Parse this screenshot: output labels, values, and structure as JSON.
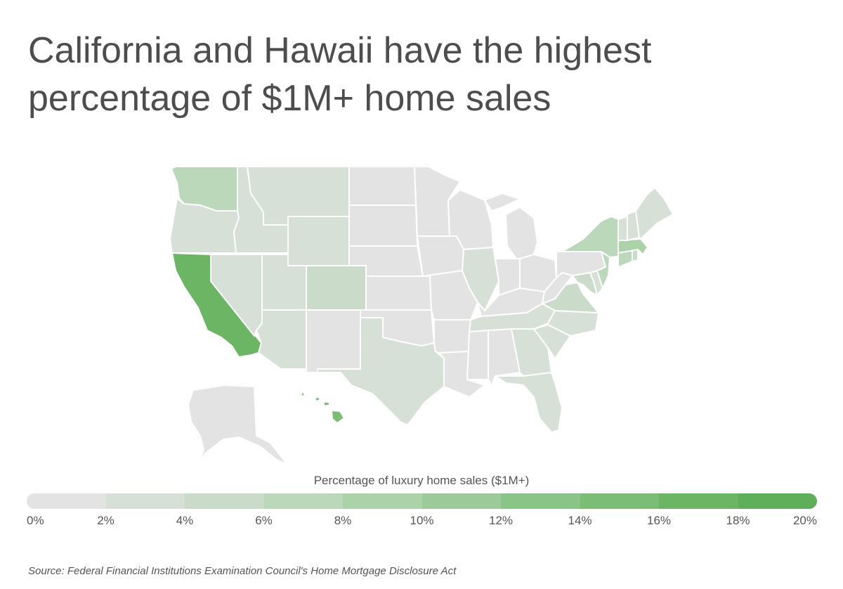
{
  "title": {
    "line1": "California and Hawaii have the highest",
    "line2": "percentage of $1M+ home sales"
  },
  "legend": {
    "title": "Percentage of luxury home sales ($1M+)",
    "ticks": [
      "0%",
      "2%",
      "4%",
      "6%",
      "8%",
      "10%",
      "12%",
      "14%",
      "16%",
      "18%",
      "20%"
    ],
    "colors": [
      "#e3e3e3",
      "#d6e0d6",
      "#cadcc9",
      "#bcd8bb",
      "#acd2aa",
      "#9ccb99",
      "#8bc487",
      "#7bbd76",
      "#6bb565",
      "#5fae59"
    ]
  },
  "source": "Source:  Federal Financial Institutions Examination Council's Home Mortgage Disclosure Act",
  "map_data": {
    "type": "choropleth",
    "scale_min": 0,
    "scale_max": 20,
    "unit": "%",
    "states": [
      {
        "id": "WA",
        "value": 6.5
      },
      {
        "id": "OR",
        "value": 2.5
      },
      {
        "id": "CA",
        "value": 17
      },
      {
        "id": "NV",
        "value": 2.5
      },
      {
        "id": "ID",
        "value": 2.5
      },
      {
        "id": "MT",
        "value": 2.5
      },
      {
        "id": "WY",
        "value": 3
      },
      {
        "id": "UT",
        "value": 2.5
      },
      {
        "id": "AZ",
        "value": 2.5
      },
      {
        "id": "CO",
        "value": 5
      },
      {
        "id": "NM",
        "value": 1
      },
      {
        "id": "ND",
        "value": 0.5
      },
      {
        "id": "SD",
        "value": 0.5
      },
      {
        "id": "NE",
        "value": 0.5
      },
      {
        "id": "KS",
        "value": 0.5
      },
      {
        "id": "OK",
        "value": 0.5
      },
      {
        "id": "TX",
        "value": 2.5
      },
      {
        "id": "MN",
        "value": 1
      },
      {
        "id": "IA",
        "value": 0.5
      },
      {
        "id": "MO",
        "value": 0.5
      },
      {
        "id": "AR",
        "value": 0.5
      },
      {
        "id": "LA",
        "value": 0.5
      },
      {
        "id": "WI",
        "value": 1
      },
      {
        "id": "IL",
        "value": 3
      },
      {
        "id": "MI",
        "value": 1
      },
      {
        "id": "IN",
        "value": 0.5
      },
      {
        "id": "OH",
        "value": 0.5
      },
      {
        "id": "KY",
        "value": 0.5
      },
      {
        "id": "TN",
        "value": 2
      },
      {
        "id": "MS",
        "value": 0.5
      },
      {
        "id": "AL",
        "value": 0.5
      },
      {
        "id": "GA",
        "value": 2.5
      },
      {
        "id": "FL",
        "value": 3
      },
      {
        "id": "SC",
        "value": 2.5
      },
      {
        "id": "NC",
        "value": 2.5
      },
      {
        "id": "VA",
        "value": 4.5
      },
      {
        "id": "WV",
        "value": 0.5
      },
      {
        "id": "MD",
        "value": 4.5
      },
      {
        "id": "DE",
        "value": 2.5
      },
      {
        "id": "PA",
        "value": 1.5
      },
      {
        "id": "NJ",
        "value": 7
      },
      {
        "id": "NY",
        "value": 7
      },
      {
        "id": "CT",
        "value": 6
      },
      {
        "id": "RI",
        "value": 4.5
      },
      {
        "id": "MA",
        "value": 9
      },
      {
        "id": "VT",
        "value": 2
      },
      {
        "id": "NH",
        "value": 2.5
      },
      {
        "id": "ME",
        "value": 2.5
      },
      {
        "id": "AK",
        "value": 1
      },
      {
        "id": "HI",
        "value": 15
      }
    ]
  }
}
